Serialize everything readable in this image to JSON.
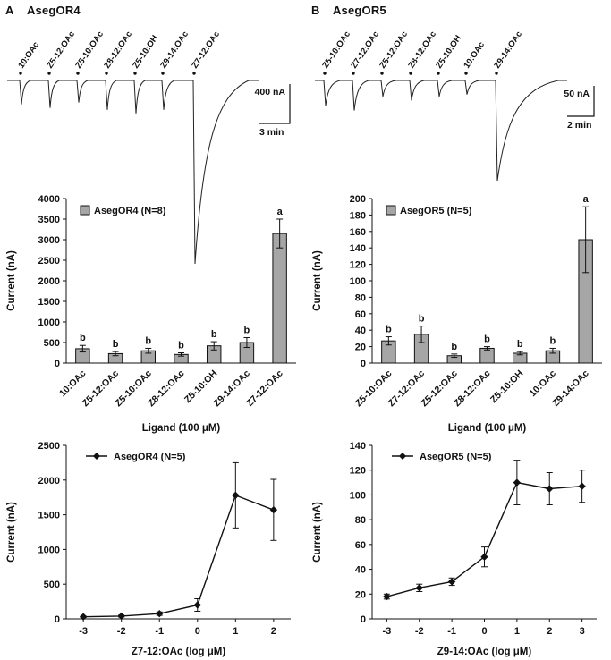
{
  "panels": [
    {
      "label": "A",
      "title": "AsegOR4"
    },
    {
      "label": "B",
      "title": "AsegOR5"
    }
  ],
  "traces": [
    {
      "panel": "A",
      "ligands": [
        "10:OAc",
        "Z5-12:OAc",
        "Z5-10:OAc",
        "Z8-12:OAc",
        "Z5-10:OH",
        "Z9-14:OAc",
        "Z7-12:OAc"
      ],
      "rel_amplitudes": [
        0.13,
        0.15,
        0.12,
        0.16,
        0.18,
        0.16,
        1
      ],
      "scale_current": "400 nA",
      "scale_time": "3 min"
    },
    {
      "panel": "B",
      "ligands": [
        "Z5-10:OAc",
        "Z7-12:OAc",
        "Z5-12:OAc",
        "Z8-12:OAc",
        "Z5-10:OH",
        "10:OAc",
        "Z9-14:OAc"
      ],
      "rel_amplitudes": [
        0.25,
        0.3,
        0.16,
        0.2,
        0.16,
        0.14,
        1
      ],
      "scale_current": "50 nA",
      "scale_time": "2 min"
    }
  ],
  "chart_data": [
    {
      "type": "bar",
      "panel": "A",
      "legend": "AsegOR4 (N=8)",
      "categories": [
        "10:OAc",
        "Z5-12:OAc",
        "Z5-10:OAc",
        "Z8-12:OAc",
        "Z5-10:OH",
        "Z9-14:OAc",
        "Z7-12:OAc"
      ],
      "values": [
        350,
        230,
        300,
        210,
        420,
        500,
        3150
      ],
      "errors": [
        80,
        50,
        60,
        40,
        100,
        120,
        350
      ],
      "letters": [
        "b",
        "b",
        "b",
        "b",
        "b",
        "b",
        "a"
      ],
      "ylabel": "Current (nA)",
      "xlabel": "Ligand (100 μM)",
      "ylim": [
        0,
        4000
      ],
      "ytick": 500
    },
    {
      "type": "bar",
      "panel": "B",
      "legend": "AsegOR5 (N=5)",
      "categories": [
        "Z5-10:OAc",
        "Z7-12:OAc",
        "Z5-12:OAc",
        "Z8-12:OAc",
        "Z5-10:OH",
        "10:OAc",
        "Z9-14:OAc"
      ],
      "values": [
        27,
        35,
        9,
        18,
        12,
        15,
        150
      ],
      "errors": [
        5,
        10,
        2,
        2,
        2,
        3,
        40
      ],
      "letters": [
        "b",
        "b",
        "b",
        "b",
        "b",
        "b",
        "a"
      ],
      "ylabel": "Current (nA)",
      "xlabel": "Ligand (100 μM)",
      "ylim": [
        0,
        200
      ],
      "ytick": 20
    },
    {
      "type": "line",
      "panel": "A",
      "legend": "AsegOR4 (N=5)",
      "x": [
        -3,
        -2,
        -1,
        0,
        1,
        2
      ],
      "values": [
        30,
        40,
        75,
        200,
        1780,
        1570
      ],
      "errors": [
        10,
        15,
        25,
        90,
        470,
        440
      ],
      "ylabel": "Current (nA)",
      "xlabel": "Z7-12:OAc (log μM)",
      "ylim": [
        0,
        2500
      ],
      "ytick": 500
    },
    {
      "type": "line",
      "panel": "B",
      "legend": "AsegOR5 (N=5)",
      "x": [
        -3,
        -2,
        -1,
        0,
        1,
        2,
        3
      ],
      "values": [
        18,
        25,
        30,
        50,
        110,
        105,
        107
      ],
      "errors": [
        2,
        3,
        3,
        8,
        18,
        13,
        13
      ],
      "ylabel": "Current (nA)",
      "xlabel": "Z9-14:OAc (log μM)",
      "ylim": [
        0,
        140
      ],
      "ytick": 20
    }
  ],
  "colors": {
    "bar_fill": "#a6a6a6",
    "axis": "#111111",
    "trace": "#222222"
  }
}
